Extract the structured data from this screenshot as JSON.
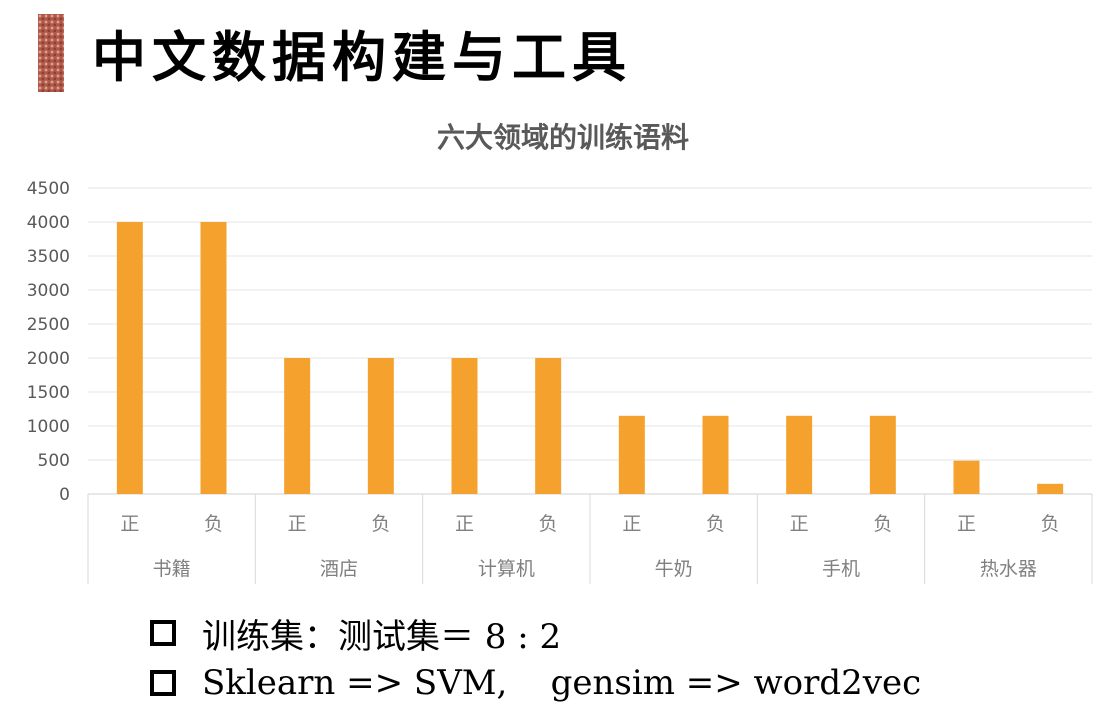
{
  "page": {
    "title": "中文数据构建与工具"
  },
  "chart_data": {
    "type": "bar",
    "title": "六大领域的训练语料",
    "xlabel": "",
    "ylabel": "",
    "ylim": [
      0,
      4500
    ],
    "yticks": [
      "0",
      "500",
      "1000",
      "1500",
      "2000",
      "2500",
      "3000",
      "3500",
      "4000",
      "4500"
    ],
    "grid": true,
    "legend": "none",
    "bar_color": "#f4a22d",
    "groups": [
      {
        "name": "书籍",
        "categories": [
          "正",
          "负"
        ],
        "values": [
          4000,
          4000
        ]
      },
      {
        "name": "酒店",
        "categories": [
          "正",
          "负"
        ],
        "values": [
          2000,
          2000
        ]
      },
      {
        "name": "计算机",
        "categories": [
          "正",
          "负"
        ],
        "values": [
          2000,
          2000
        ]
      },
      {
        "name": "牛奶",
        "categories": [
          "正",
          "负"
        ],
        "values": [
          1150,
          1150
        ]
      },
      {
        "name": "手机",
        "categories": [
          "正",
          "负"
        ],
        "values": [
          1150,
          1150
        ]
      },
      {
        "name": "热水器",
        "categories": [
          "正",
          "负"
        ],
        "values": [
          490,
          150
        ]
      }
    ]
  },
  "bullets": [
    "训练集：测试集＝ 8 : 2",
    "Sklearn => SVM,    gensim => word2vec"
  ]
}
